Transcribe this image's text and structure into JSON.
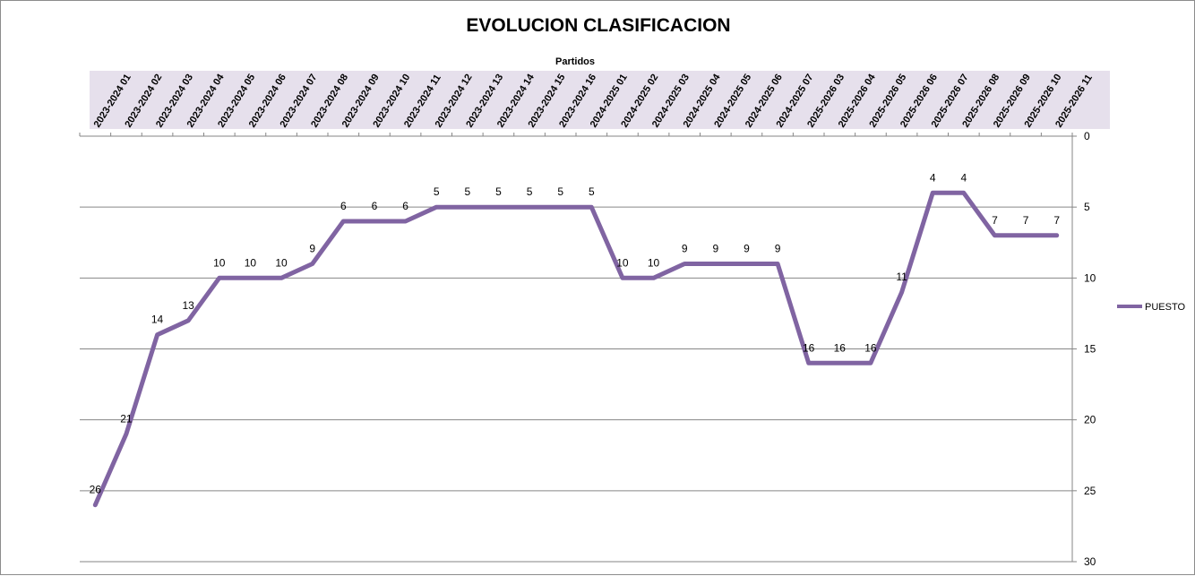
{
  "chart_data": {
    "type": "line",
    "title": "EVOLUCION CLASIFICACION",
    "xlabel": "Partidos",
    "ylabel": "",
    "y_reversed": true,
    "ylim": [
      0,
      30
    ],
    "yticks": [
      0,
      5,
      10,
      15,
      20,
      25,
      30
    ],
    "x_axis_position": "top",
    "y_axis_position": "right",
    "grid": true,
    "legend_position": "right",
    "categories": [
      "2023-2024 01",
      "2023-2024 02",
      "2023-2024 03",
      "2023-2024 04",
      "2023-2024 05",
      "2023-2024 06",
      "2023-2024 07",
      "2023-2024 08",
      "2023-2024 09",
      "2023-2024 10",
      "2023-2024 11",
      "2023-2024 12",
      "2023-2024 13",
      "2023-2024 14",
      "2023-2024 15",
      "2023-2024 16",
      "2024-2025 01",
      "2024-2025 02",
      "2024-2025 03",
      "2024-2025 04",
      "2024-2025 05",
      "2024-2025 06",
      "2024-2025 07",
      "2025-2026 03",
      "2025-2026 04",
      "2025-2026 05",
      "2025-2026 06",
      "2025-2026 07",
      "2025-2026 08",
      "2025-2026 09",
      "2025-2026 10",
      "2025-2026 11"
    ],
    "series": [
      {
        "name": "PUESTO",
        "color": "#8064a2",
        "values": [
          26,
          21,
          14,
          13,
          10,
          10,
          10,
          9,
          6,
          6,
          6,
          5,
          5,
          5,
          5,
          5,
          5,
          10,
          10,
          9,
          9,
          9,
          9,
          16,
          16,
          16,
          11,
          4,
          4,
          7,
          7,
          7
        ]
      }
    ],
    "category_band_color": "#e6e0ec",
    "gridline_color": "#868686"
  }
}
